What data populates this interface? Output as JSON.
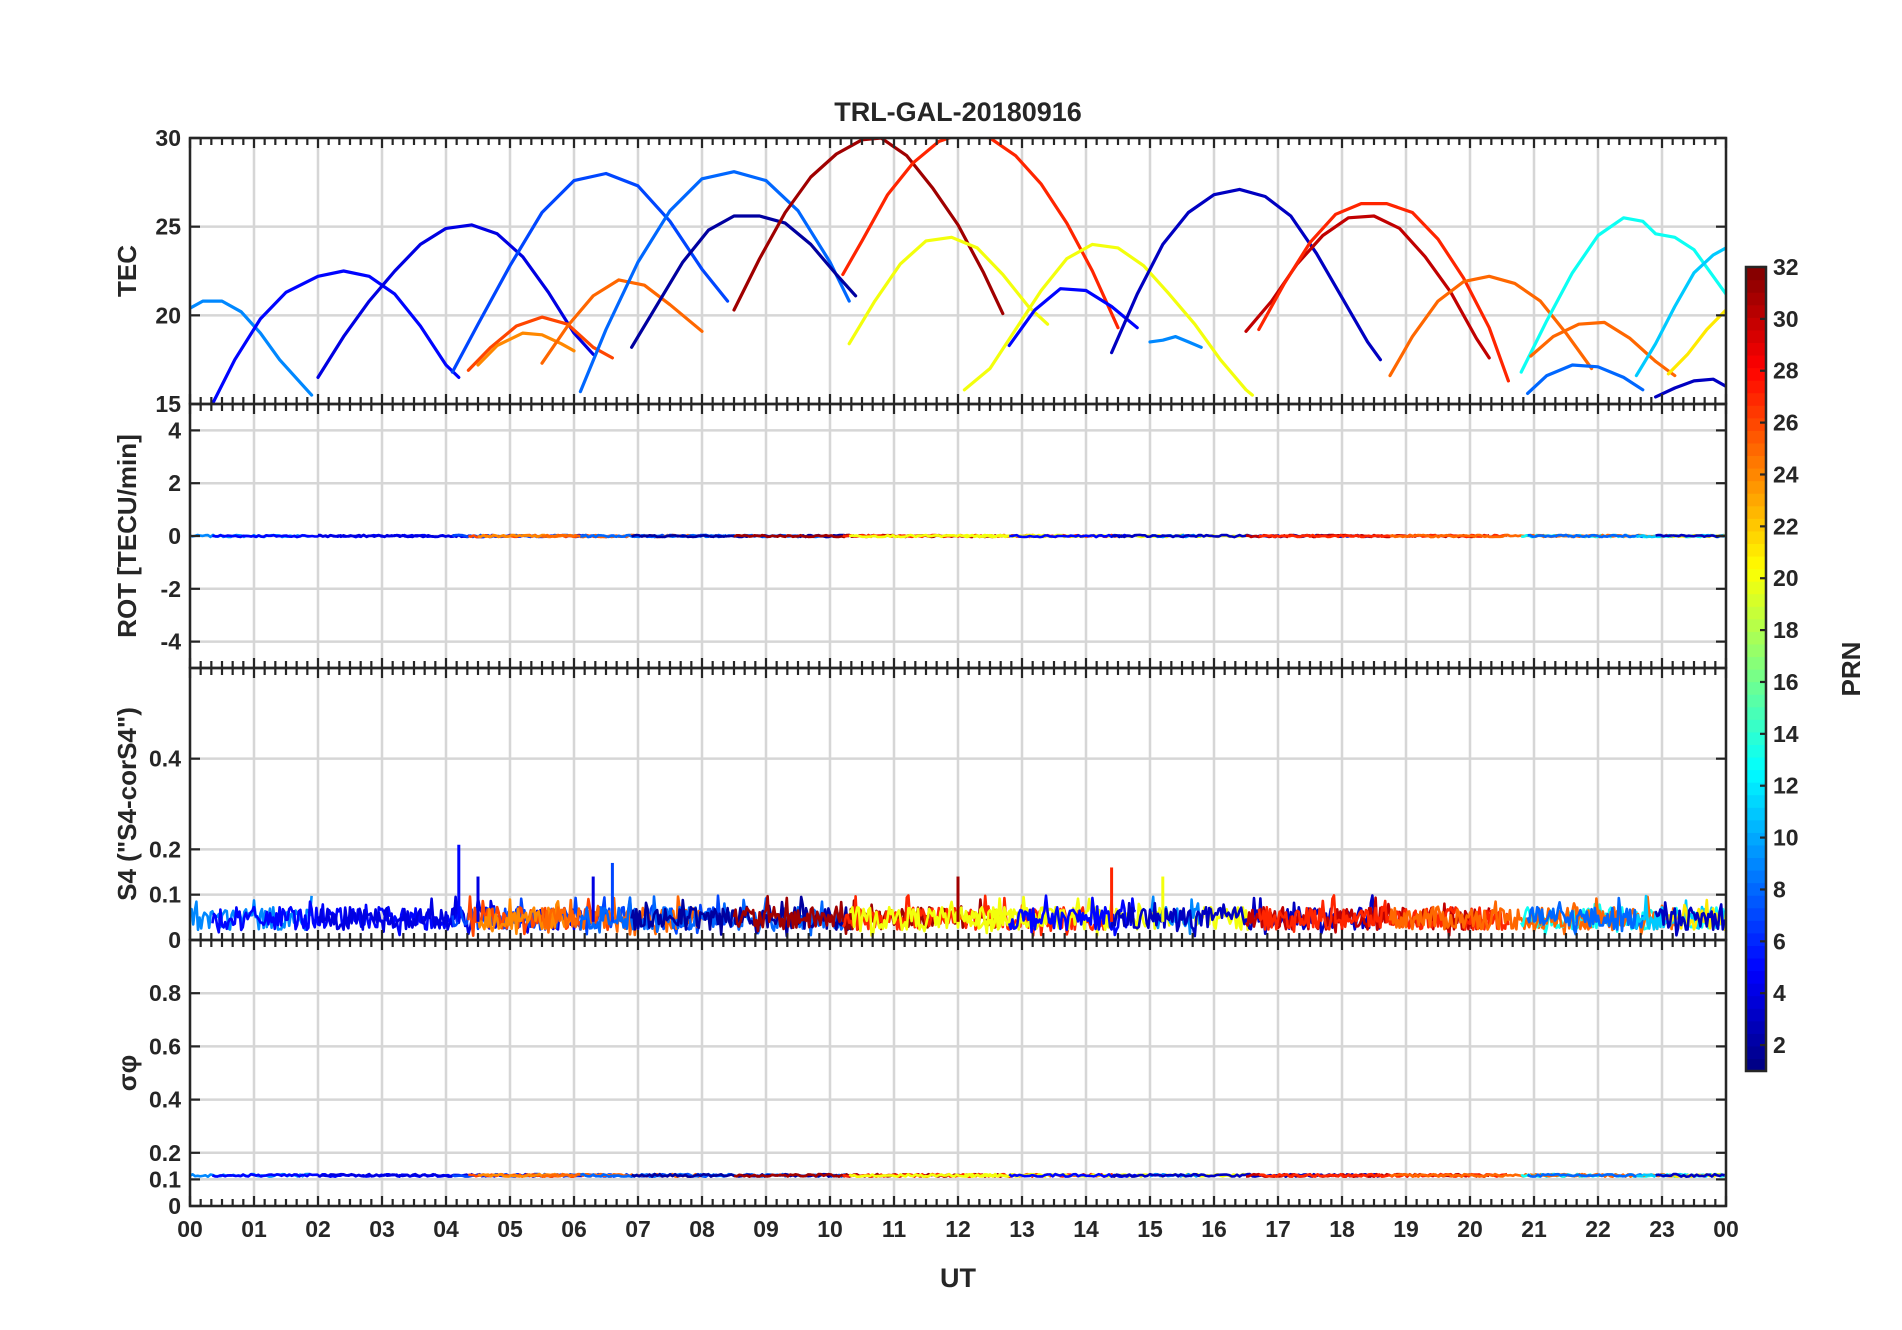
{
  "chart_data": {
    "type": "line",
    "title": "TRL-GAL-20180916",
    "xlabel": "UT",
    "x_ticks": [
      "00",
      "01",
      "02",
      "03",
      "04",
      "05",
      "06",
      "07",
      "08",
      "09",
      "10",
      "11",
      "12",
      "13",
      "14",
      "15",
      "16",
      "17",
      "18",
      "19",
      "20",
      "21",
      "22",
      "23",
      "00"
    ],
    "xlim": [
      0,
      24
    ],
    "panels": [
      {
        "id": "tec",
        "ylabel": "TEC",
        "ylim": [
          15,
          30
        ],
        "y_ticks": [
          15,
          20,
          25,
          30
        ],
        "tick_labels": [
          "15",
          "20",
          "25",
          "30"
        ],
        "series": [
          {
            "prn": 9,
            "x": [
              0.0,
              0.2,
              0.5,
              0.8,
              1.1,
              1.4,
              1.9
            ],
            "y": [
              20.4,
              20.8,
              20.8,
              20.2,
              19.0,
              17.5,
              15.5
            ]
          },
          {
            "prn": 5,
            "x": [
              0.35,
              0.7,
              1.1,
              1.5,
              2.0,
              2.4,
              2.8,
              3.2,
              3.6,
              4.0,
              4.2
            ],
            "y": [
              15.0,
              17.5,
              19.8,
              21.3,
              22.2,
              22.5,
              22.2,
              21.2,
              19.4,
              17.2,
              16.5
            ]
          },
          {
            "prn": 4,
            "x": [
              2.0,
              2.4,
              2.8,
              3.2,
              3.6,
              4.0,
              4.4,
              4.8,
              5.2,
              5.6,
              6.0,
              6.3
            ],
            "y": [
              16.5,
              18.8,
              20.8,
              22.5,
              24.0,
              24.9,
              25.1,
              24.6,
              23.3,
              21.3,
              19.0,
              17.8
            ]
          },
          {
            "prn": 7,
            "x": [
              4.1,
              4.5,
              5.0,
              5.5,
              6.0,
              6.5,
              7.0,
              7.5,
              8.0,
              8.4
            ],
            "y": [
              16.8,
              19.5,
              22.8,
              25.8,
              27.6,
              28.0,
              27.3,
              25.3,
              22.6,
              20.8
            ]
          },
          {
            "prn": 26,
            "x": [
              4.35,
              4.7,
              5.1,
              5.5,
              5.9,
              6.3,
              6.6
            ],
            "y": [
              16.9,
              18.2,
              19.4,
              19.9,
              19.5,
              18.2,
              17.6
            ]
          },
          {
            "prn": 24,
            "x": [
              4.5,
              4.8,
              5.2,
              5.5,
              5.8,
              6.0
            ],
            "y": [
              17.2,
              18.3,
              19.0,
              18.9,
              18.4,
              18.0
            ]
          },
          {
            "prn": 25,
            "x": [
              5.5,
              5.9,
              6.3,
              6.7,
              7.1,
              7.5,
              8.0
            ],
            "y": [
              17.3,
              19.4,
              21.1,
              22.0,
              21.7,
              20.6,
              19.1
            ]
          },
          {
            "prn": 8,
            "x": [
              6.1,
              6.5,
              7.0,
              7.5,
              8.0,
              8.5,
              9.0,
              9.5,
              10.0,
              10.3
            ],
            "y": [
              15.7,
              19.2,
              23.0,
              25.9,
              27.7,
              28.1,
              27.6,
              25.9,
              23.0,
              20.8
            ]
          },
          {
            "prn": 2,
            "x": [
              6.9,
              7.3,
              7.7,
              8.1,
              8.5,
              8.9,
              9.3,
              9.7,
              10.1,
              10.4
            ],
            "y": [
              18.2,
              20.6,
              23.0,
              24.8,
              25.6,
              25.6,
              25.2,
              24.0,
              22.3,
              21.1
            ]
          },
          {
            "prn": 31,
            "x": [
              8.5,
              8.9,
              9.3,
              9.7,
              10.1,
              10.5,
              10.8,
              11.2,
              11.6,
              12.0,
              12.4,
              12.7
            ],
            "y": [
              20.3,
              23.2,
              25.8,
              27.8,
              29.1,
              29.9,
              30.0,
              29.0,
              27.2,
              25.1,
              22.4,
              20.1
            ]
          },
          {
            "prn": 27,
            "x": [
              10.2,
              10.5,
              10.9,
              11.3,
              11.7,
              12.1,
              12.5,
              12.9,
              13.3,
              13.7,
              14.1,
              14.5
            ],
            "y": [
              22.3,
              24.2,
              26.8,
              28.6,
              29.8,
              30.3,
              30.0,
              29.0,
              27.4,
              25.2,
              22.5,
              19.3
            ]
          },
          {
            "prn": 20,
            "x": [
              10.3,
              10.7,
              11.1,
              11.5,
              11.9,
              12.3,
              12.7,
              13.1,
              13.4
            ],
            "y": [
              18.4,
              20.8,
              22.9,
              24.2,
              24.4,
              23.8,
              22.3,
              20.5,
              19.5
            ]
          },
          {
            "prn": 20,
            "x": [
              12.1,
              12.5,
              12.9,
              13.3,
              13.7,
              14.1,
              14.5,
              14.9,
              15.3,
              15.7,
              16.1,
              16.5,
              16.6
            ],
            "y": [
              15.8,
              17.0,
              19.2,
              21.4,
              23.2,
              24.0,
              23.8,
              22.8,
              21.2,
              19.5,
              17.5,
              15.8,
              15.5
            ]
          },
          {
            "prn": 5,
            "x": [
              12.8,
              13.2,
              13.6,
              14.0,
              14.4,
              14.8
            ],
            "y": [
              18.3,
              20.3,
              21.5,
              21.4,
              20.5,
              19.3
            ]
          },
          {
            "prn": 9,
            "x": [
              15.0,
              15.2,
              15.4,
              15.6,
              15.8
            ],
            "y": [
              18.5,
              18.6,
              18.8,
              18.5,
              18.2
            ]
          },
          {
            "prn": 3,
            "x": [
              14.4,
              14.8,
              15.2,
              15.6,
              16.0,
              16.4,
              16.8,
              17.2,
              17.6,
              18.0,
              18.4,
              18.6
            ],
            "y": [
              17.9,
              21.2,
              24.0,
              25.8,
              26.8,
              27.1,
              26.7,
              25.6,
              23.5,
              21.0,
              18.5,
              17.5
            ]
          },
          {
            "prn": 30,
            "x": [
              16.5,
              16.9,
              17.3,
              17.7,
              18.1,
              18.5,
              18.9,
              19.3,
              19.7,
              20.1,
              20.3
            ],
            "y": [
              19.1,
              20.8,
              22.9,
              24.5,
              25.5,
              25.6,
              24.9,
              23.3,
              21.3,
              18.7,
              17.6
            ]
          },
          {
            "prn": 27,
            "x": [
              16.7,
              17.1,
              17.5,
              17.9,
              18.3,
              18.7,
              19.1,
              19.5,
              19.9,
              20.3,
              20.6
            ],
            "y": [
              19.2,
              21.8,
              24.1,
              25.7,
              26.3,
              26.3,
              25.8,
              24.3,
              22.1,
              19.3,
              16.3
            ]
          },
          {
            "prn": 25,
            "x": [
              18.75,
              19.1,
              19.5,
              19.9,
              20.3,
              20.7,
              21.1,
              21.5,
              21.9
            ],
            "y": [
              16.6,
              18.8,
              20.8,
              21.9,
              22.2,
              21.8,
              20.8,
              19.0,
              17.0
            ]
          },
          {
            "prn": 13,
            "x": [
              20.8,
              21.2,
              21.6,
              22.0,
              22.4,
              22.7,
              22.9,
              23.2,
              23.5,
              23.8,
              24.0
            ],
            "y": [
              16.8,
              19.7,
              22.4,
              24.5,
              25.5,
              25.3,
              24.6,
              24.4,
              23.7,
              22.2,
              21.2
            ]
          },
          {
            "prn": 25,
            "x": [
              20.95,
              21.3,
              21.7,
              22.1,
              22.5,
              22.9,
              23.2
            ],
            "y": [
              17.7,
              18.8,
              19.5,
              19.6,
              18.7,
              17.4,
              16.6
            ]
          },
          {
            "prn": 8,
            "x": [
              20.9,
              21.2,
              21.6,
              22.0,
              22.4,
              22.7
            ],
            "y": [
              15.6,
              16.6,
              17.2,
              17.1,
              16.5,
              15.8
            ]
          },
          {
            "prn": 11,
            "x": [
              22.6,
              22.9,
              23.2,
              23.5,
              23.8,
              24.0
            ],
            "y": [
              16.6,
              18.4,
              20.5,
              22.4,
              23.4,
              23.8
            ]
          },
          {
            "prn": 21,
            "x": [
              23.1,
              23.4,
              23.7,
              24.0
            ],
            "y": [
              16.7,
              17.8,
              19.2,
              20.3
            ]
          },
          {
            "prn": 3,
            "x": [
              22.9,
              23.2,
              23.5,
              23.8,
              24.0
            ],
            "y": [
              15.4,
              15.9,
              16.3,
              16.4,
              16.0
            ]
          }
        ]
      },
      {
        "id": "rot",
        "ylabel": "ROT [TECU/min]",
        "ylim": [
          -5,
          5
        ],
        "y_ticks": [
          -4,
          -2,
          0,
          2,
          4
        ],
        "tick_labels": [
          "-4",
          "-2",
          "0",
          "2",
          "4"
        ],
        "baseline": 0,
        "noise_amplitude": 0.08
      },
      {
        "id": "s4",
        "ylabel": "S4 (\"S4-corS4\")",
        "ylim": [
          0,
          0.6
        ],
        "y_ticks": [
          0,
          0.1,
          0.2,
          0.4
        ],
        "tick_labels": [
          "0",
          "0.1",
          "0.2",
          "0.4"
        ],
        "baseline": 0.04,
        "noise_amplitude": 0.05,
        "spikes": [
          {
            "x": 4.2,
            "y": 0.21
          },
          {
            "x": 6.6,
            "y": 0.17
          },
          {
            "x": 6.3,
            "y": 0.14
          },
          {
            "x": 14.4,
            "y": 0.16
          },
          {
            "x": 4.5,
            "y": 0.14
          },
          {
            "x": 12.0,
            "y": 0.14
          },
          {
            "x": 15.2,
            "y": 0.14
          }
        ]
      },
      {
        "id": "sigma",
        "ylabel": "σφ",
        "ylim": [
          0,
          1
        ],
        "y_ticks": [
          0,
          0.1,
          0.2,
          0.4,
          0.6,
          0.8
        ],
        "tick_labels": [
          "0",
          "0.1",
          "0.2",
          "0.4",
          "0.6",
          "0.8"
        ],
        "baseline": 0.115,
        "noise_amplitude": 0.01
      }
    ],
    "colorbar": {
      "label": "PRN",
      "range": [
        1,
        32
      ],
      "ticks": [
        2,
        4,
        6,
        8,
        10,
        12,
        14,
        16,
        18,
        20,
        22,
        24,
        26,
        28,
        30,
        32
      ],
      "tick_labels": [
        "2",
        "4",
        "6",
        "8",
        "10",
        "12",
        "14",
        "16",
        "18",
        "20",
        "22",
        "24",
        "26",
        "28",
        "30",
        "32"
      ],
      "colormap": "jet"
    },
    "coverage": [
      {
        "prn": 9,
        "start": 0.0,
        "end": 1.9
      },
      {
        "prn": 5,
        "start": 0.35,
        "end": 4.2
      },
      {
        "prn": 4,
        "start": 2.0,
        "end": 6.3
      },
      {
        "prn": 7,
        "start": 4.1,
        "end": 8.4
      },
      {
        "prn": 26,
        "start": 4.35,
        "end": 6.6
      },
      {
        "prn": 24,
        "start": 4.5,
        "end": 6.0
      },
      {
        "prn": 25,
        "start": 5.5,
        "end": 8.0
      },
      {
        "prn": 8,
        "start": 6.1,
        "end": 10.3
      },
      {
        "prn": 2,
        "start": 6.9,
        "end": 10.4
      },
      {
        "prn": 31,
        "start": 8.5,
        "end": 12.7
      },
      {
        "prn": 27,
        "start": 10.2,
        "end": 14.5
      },
      {
        "prn": 20,
        "start": 10.3,
        "end": 13.4
      },
      {
        "prn": 20,
        "start": 12.1,
        "end": 16.6
      },
      {
        "prn": 5,
        "start": 12.8,
        "end": 14.8
      },
      {
        "prn": 9,
        "start": 15.0,
        "end": 15.8
      },
      {
        "prn": 3,
        "start": 14.4,
        "end": 18.6
      },
      {
        "prn": 30,
        "start": 16.5,
        "end": 20.3
      },
      {
        "prn": 27,
        "start": 16.7,
        "end": 20.6
      },
      {
        "prn": 25,
        "start": 18.75,
        "end": 21.9
      },
      {
        "prn": 13,
        "start": 20.8,
        "end": 24.0
      },
      {
        "prn": 25,
        "start": 20.95,
        "end": 23.2
      },
      {
        "prn": 8,
        "start": 20.9,
        "end": 22.7
      },
      {
        "prn": 11,
        "start": 22.6,
        "end": 24.0
      },
      {
        "prn": 21,
        "start": 23.1,
        "end": 24.0
      },
      {
        "prn": 3,
        "start": 22.9,
        "end": 24.0
      }
    ]
  }
}
